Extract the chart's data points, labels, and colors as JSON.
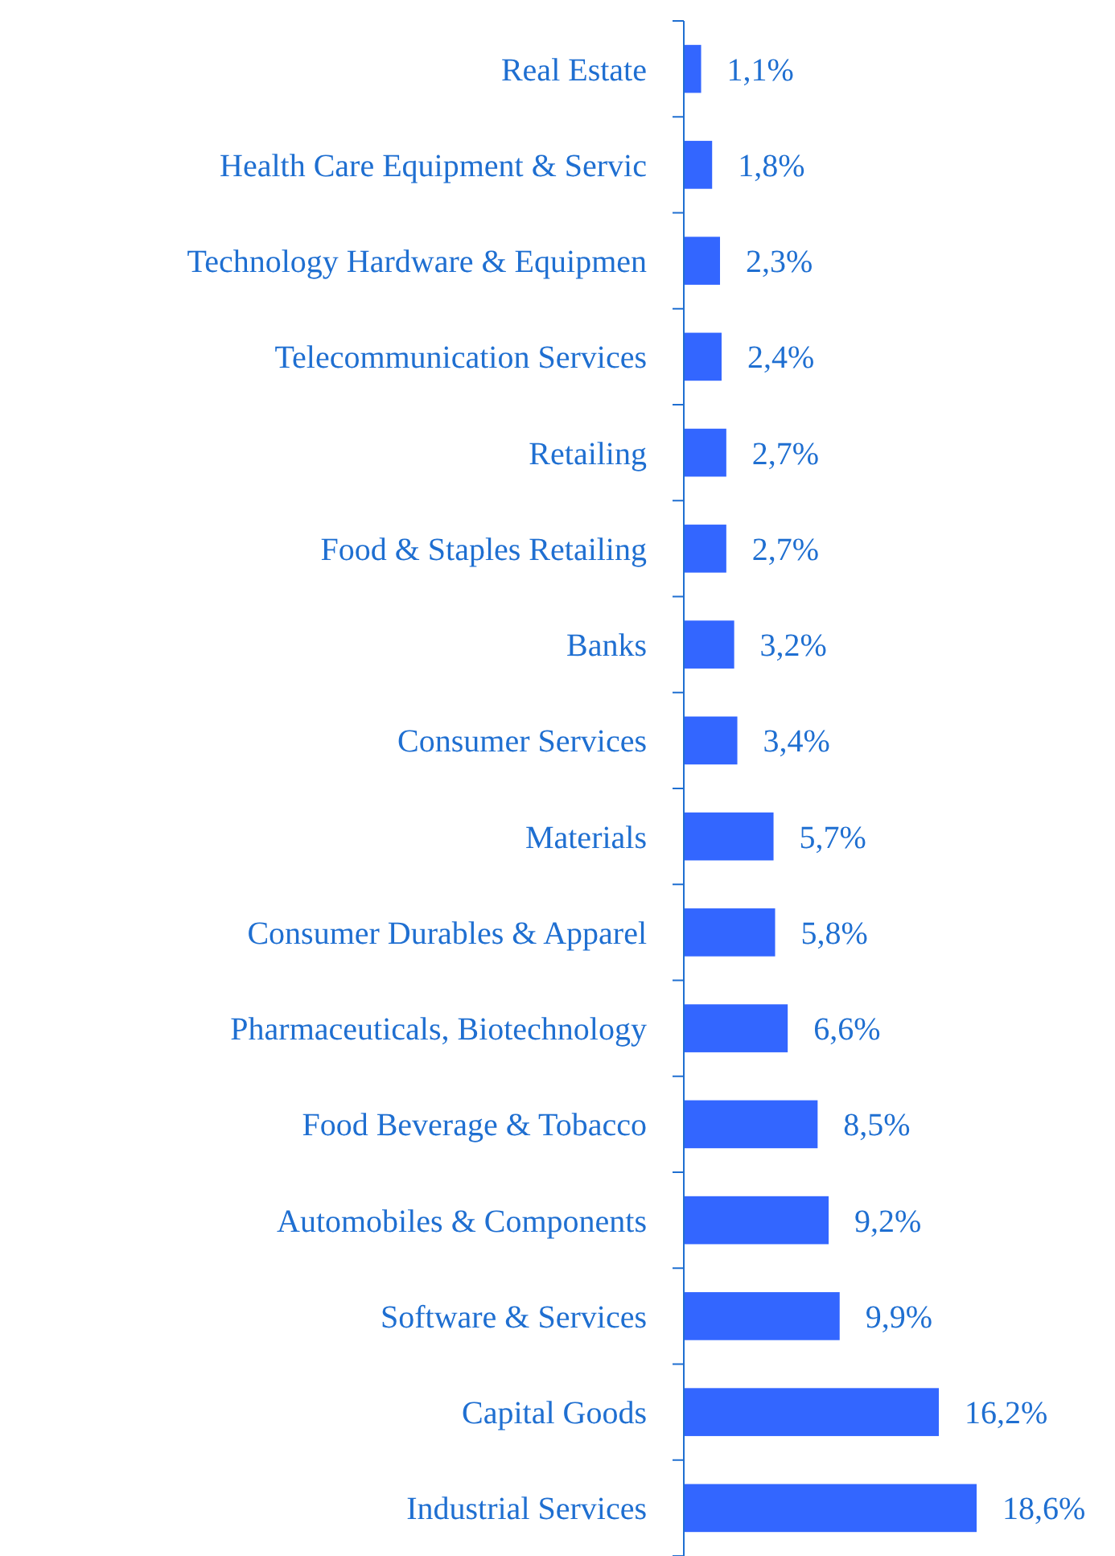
{
  "chart_data": {
    "type": "bar",
    "orientation": "horizontal",
    "categories": [
      "Real Estate",
      "Health Care Equipment & Servic",
      "Technology Hardware & Equipmen",
      "Telecommunication Services",
      "Retailing",
      "Food & Staples Retailing",
      "Banks",
      "Consumer Services",
      "Materials",
      "Consumer Durables & Apparel",
      "Pharmaceuticals, Biotechnology",
      "Food Beverage & Tobacco",
      "Automobiles & Components",
      "Software & Services",
      "Capital Goods",
      "Industrial Services"
    ],
    "values": [
      1.1,
      1.8,
      2.3,
      2.4,
      2.7,
      2.7,
      3.2,
      3.4,
      5.7,
      5.8,
      6.6,
      8.5,
      9.2,
      9.9,
      16.2,
      18.6
    ],
    "value_labels": [
      "1,1%",
      "1,8%",
      "2,3%",
      "2,4%",
      "2,7%",
      "2,7%",
      "3,2%",
      "3,4%",
      "5,7%",
      "5,8%",
      "6,6%",
      "8,5%",
      "9,2%",
      "9,9%",
      "16,2%",
      "18,6%"
    ],
    "color": "#3366ff"
  }
}
